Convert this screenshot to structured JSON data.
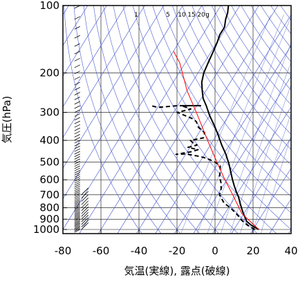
{
  "chart_data": {
    "type": "line",
    "xlabel": "気温(実線), 露点(破線)",
    "ylabel": "気圧(hPa)",
    "x_ticks": [
      "-80",
      "-60",
      "-40",
      "-20",
      "0",
      "20",
      "40"
    ],
    "y_ticks": [
      "100",
      "200",
      "300",
      "400",
      "500",
      "600",
      "700",
      "800",
      "900",
      "1000"
    ],
    "xlim": [
      -80,
      40
    ],
    "ylim": [
      1050,
      100
    ],
    "y_scale": "log",
    "grid": true,
    "mixing_ratio_labels": [
      "1",
      "5",
      "10",
      "15",
      "20",
      "g"
    ],
    "series": [
      {
        "style": "solid",
        "color": "#000000",
        "points": [
          [
            23,
            1000
          ],
          [
            18,
            960
          ],
          [
            14,
            920
          ],
          [
            11,
            870
          ],
          [
            8,
            820
          ],
          [
            5,
            770
          ],
          [
            2,
            720
          ],
          [
            -1,
            680
          ],
          [
            -4,
            640
          ],
          [
            -7,
            600
          ],
          [
            -10,
            560
          ],
          [
            -14,
            510
          ],
          [
            -19,
            460
          ],
          [
            -24,
            420
          ],
          [
            -29,
            380
          ],
          [
            -34,
            345
          ],
          [
            -40,
            310
          ],
          [
            -45,
            280
          ],
          [
            -49,
            260
          ],
          [
            -52,
            240
          ],
          [
            -55,
            220
          ],
          [
            -57,
            200
          ],
          [
            -58,
            180
          ],
          [
            -59,
            160
          ],
          [
            -60,
            145
          ],
          [
            -61,
            135
          ],
          [
            -61,
            125
          ],
          [
            -63,
            115
          ],
          [
            -64,
            108
          ],
          [
            -66,
            100
          ]
        ]
      },
      {
        "style": "dashed",
        "color": "#000000",
        "points": [
          [
            21,
            1000
          ],
          [
            16,
            960
          ],
          [
            11,
            910
          ],
          [
            7,
            860
          ],
          [
            2,
            810
          ],
          [
            -4,
            760
          ],
          [
            -9,
            700
          ],
          [
            -10,
            660
          ],
          [
            -12,
            620
          ],
          [
            -15,
            580
          ],
          [
            -16,
            555
          ],
          [
            -18,
            520
          ],
          [
            -22,
            500
          ],
          [
            -28,
            480
          ],
          [
            -33,
            470
          ],
          [
            -40,
            460
          ],
          [
            -45,
            462
          ],
          [
            -38,
            450
          ],
          [
            -35,
            440
          ],
          [
            -41,
            430
          ],
          [
            -37,
            420
          ],
          [
            -40,
            410
          ],
          [
            -42,
            400
          ],
          [
            -36,
            390
          ],
          [
            -37,
            370
          ],
          [
            -42,
            350
          ],
          [
            -45,
            330
          ],
          [
            -48,
            320
          ],
          [
            -58,
            300
          ],
          [
            -52,
            290
          ],
          [
            -58,
            280
          ],
          [
            -48,
            280
          ],
          [
            -60,
            280
          ],
          [
            -70,
            285
          ],
          [
            -74,
            280
          ]
        ]
      },
      {
        "style": "solid",
        "color": "#ff0000",
        "points": [
          [
            23,
            1000
          ],
          [
            9,
            850
          ],
          [
            -2,
            700
          ],
          [
            -11,
            600
          ],
          [
            -21,
            500
          ],
          [
            -33,
            400
          ],
          [
            -48,
            300
          ],
          [
            -60,
            240
          ],
          [
            -66,
            210
          ],
          [
            -73,
            180
          ],
          [
            -80,
            160
          ]
        ]
      }
    ],
    "wind_barb_column_x": -71
  }
}
